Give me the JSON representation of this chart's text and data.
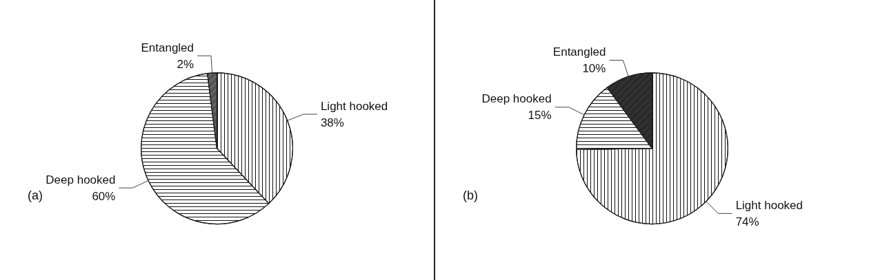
{
  "chart_data": [
    {
      "type": "pie",
      "categories": [
        "Light hooked",
        "Deep hooked",
        "Entangled"
      ],
      "values": [
        38,
        60,
        2
      ],
      "colors": [
        "#ffffff",
        "#ffffff",
        "#666666"
      ],
      "value_labels": [
        "38%",
        "60%",
        "2%"
      ],
      "annotations": [
        "(a)"
      ]
    },
    {
      "type": "pie",
      "categories": [
        "Light hooked",
        "Deep hooked",
        "Entangled"
      ],
      "values": [
        74,
        15,
        10
      ],
      "colors": [
        "#ffffff",
        "#ffffff",
        "#333333"
      ],
      "value_labels": [
        "74%",
        "15%",
        "10%"
      ],
      "annotations": [
        "(b)"
      ]
    }
  ]
}
